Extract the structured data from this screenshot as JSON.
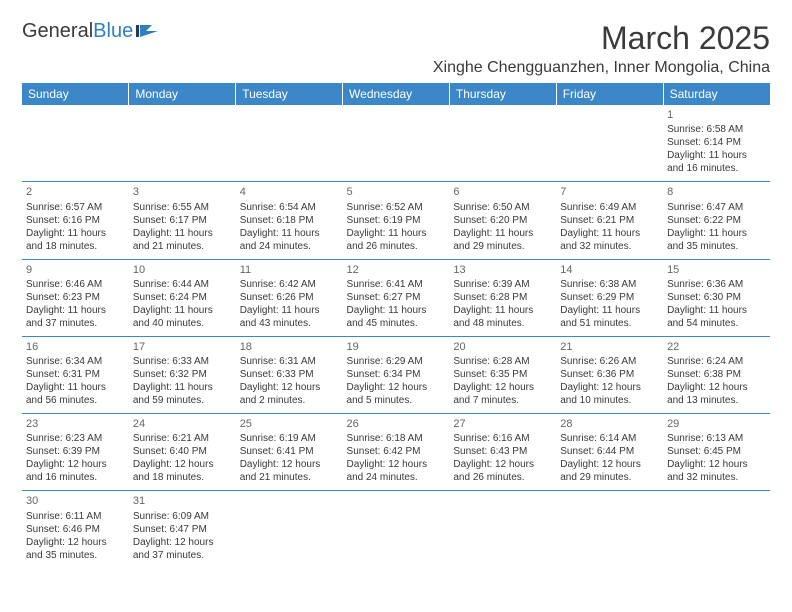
{
  "logo": {
    "text1": "General",
    "text2": "Blue"
  },
  "title": "March 2025",
  "location": "Xinghe Chengguanzhen, Inner Mongolia, China",
  "colors": {
    "header_bg": "#3b87c8",
    "header_fg": "#ffffff",
    "text": "#3a3a3a",
    "grid_line": "#3b87c8",
    "daynum": "#666666",
    "logo_blue": "#2f7fbf",
    "page_bg": "#ffffff"
  },
  "day_headers": [
    "Sunday",
    "Monday",
    "Tuesday",
    "Wednesday",
    "Thursday",
    "Friday",
    "Saturday"
  ],
  "weeks": [
    [
      null,
      null,
      null,
      null,
      null,
      null,
      {
        "n": "1",
        "sunrise": "6:58 AM",
        "sunset": "6:14 PM",
        "daylight": "11 hours and 16 minutes."
      }
    ],
    [
      {
        "n": "2",
        "sunrise": "6:57 AM",
        "sunset": "6:16 PM",
        "daylight": "11 hours and 18 minutes."
      },
      {
        "n": "3",
        "sunrise": "6:55 AM",
        "sunset": "6:17 PM",
        "daylight": "11 hours and 21 minutes."
      },
      {
        "n": "4",
        "sunrise": "6:54 AM",
        "sunset": "6:18 PM",
        "daylight": "11 hours and 24 minutes."
      },
      {
        "n": "5",
        "sunrise": "6:52 AM",
        "sunset": "6:19 PM",
        "daylight": "11 hours and 26 minutes."
      },
      {
        "n": "6",
        "sunrise": "6:50 AM",
        "sunset": "6:20 PM",
        "daylight": "11 hours and 29 minutes."
      },
      {
        "n": "7",
        "sunrise": "6:49 AM",
        "sunset": "6:21 PM",
        "daylight": "11 hours and 32 minutes."
      },
      {
        "n": "8",
        "sunrise": "6:47 AM",
        "sunset": "6:22 PM",
        "daylight": "11 hours and 35 minutes."
      }
    ],
    [
      {
        "n": "9",
        "sunrise": "6:46 AM",
        "sunset": "6:23 PM",
        "daylight": "11 hours and 37 minutes."
      },
      {
        "n": "10",
        "sunrise": "6:44 AM",
        "sunset": "6:24 PM",
        "daylight": "11 hours and 40 minutes."
      },
      {
        "n": "11",
        "sunrise": "6:42 AM",
        "sunset": "6:26 PM",
        "daylight": "11 hours and 43 minutes."
      },
      {
        "n": "12",
        "sunrise": "6:41 AM",
        "sunset": "6:27 PM",
        "daylight": "11 hours and 45 minutes."
      },
      {
        "n": "13",
        "sunrise": "6:39 AM",
        "sunset": "6:28 PM",
        "daylight": "11 hours and 48 minutes."
      },
      {
        "n": "14",
        "sunrise": "6:38 AM",
        "sunset": "6:29 PM",
        "daylight": "11 hours and 51 minutes."
      },
      {
        "n": "15",
        "sunrise": "6:36 AM",
        "sunset": "6:30 PM",
        "daylight": "11 hours and 54 minutes."
      }
    ],
    [
      {
        "n": "16",
        "sunrise": "6:34 AM",
        "sunset": "6:31 PM",
        "daylight": "11 hours and 56 minutes."
      },
      {
        "n": "17",
        "sunrise": "6:33 AM",
        "sunset": "6:32 PM",
        "daylight": "11 hours and 59 minutes."
      },
      {
        "n": "18",
        "sunrise": "6:31 AM",
        "sunset": "6:33 PM",
        "daylight": "12 hours and 2 minutes."
      },
      {
        "n": "19",
        "sunrise": "6:29 AM",
        "sunset": "6:34 PM",
        "daylight": "12 hours and 5 minutes."
      },
      {
        "n": "20",
        "sunrise": "6:28 AM",
        "sunset": "6:35 PM",
        "daylight": "12 hours and 7 minutes."
      },
      {
        "n": "21",
        "sunrise": "6:26 AM",
        "sunset": "6:36 PM",
        "daylight": "12 hours and 10 minutes."
      },
      {
        "n": "22",
        "sunrise": "6:24 AM",
        "sunset": "6:38 PM",
        "daylight": "12 hours and 13 minutes."
      }
    ],
    [
      {
        "n": "23",
        "sunrise": "6:23 AM",
        "sunset": "6:39 PM",
        "daylight": "12 hours and 16 minutes."
      },
      {
        "n": "24",
        "sunrise": "6:21 AM",
        "sunset": "6:40 PM",
        "daylight": "12 hours and 18 minutes."
      },
      {
        "n": "25",
        "sunrise": "6:19 AM",
        "sunset": "6:41 PM",
        "daylight": "12 hours and 21 minutes."
      },
      {
        "n": "26",
        "sunrise": "6:18 AM",
        "sunset": "6:42 PM",
        "daylight": "12 hours and 24 minutes."
      },
      {
        "n": "27",
        "sunrise": "6:16 AM",
        "sunset": "6:43 PM",
        "daylight": "12 hours and 26 minutes."
      },
      {
        "n": "28",
        "sunrise": "6:14 AM",
        "sunset": "6:44 PM",
        "daylight": "12 hours and 29 minutes."
      },
      {
        "n": "29",
        "sunrise": "6:13 AM",
        "sunset": "6:45 PM",
        "daylight": "12 hours and 32 minutes."
      }
    ],
    [
      {
        "n": "30",
        "sunrise": "6:11 AM",
        "sunset": "6:46 PM",
        "daylight": "12 hours and 35 minutes."
      },
      {
        "n": "31",
        "sunrise": "6:09 AM",
        "sunset": "6:47 PM",
        "daylight": "12 hours and 37 minutes."
      },
      null,
      null,
      null,
      null,
      null
    ]
  ],
  "labels": {
    "sunrise": "Sunrise: ",
    "sunset": "Sunset: ",
    "daylight": "Daylight: "
  }
}
